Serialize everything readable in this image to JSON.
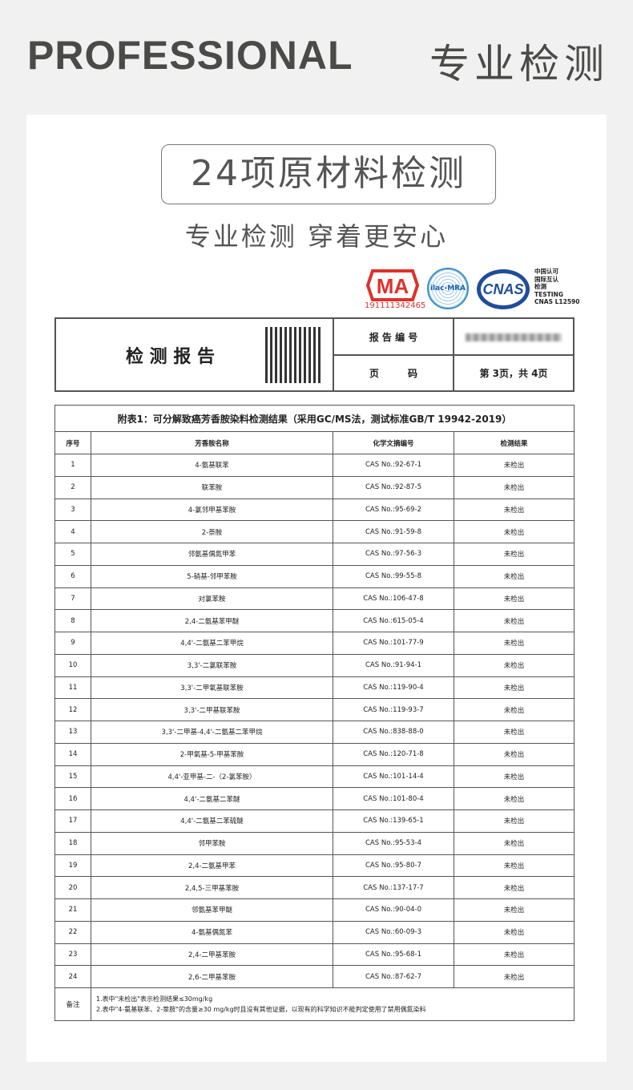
{
  "header": {
    "title_en": "PROFESSIONAL",
    "title_cn": "专业检测"
  },
  "title_box": "24项原材料检测",
  "subtitle": "专业检测 穿着更安心",
  "logos": {
    "cma_text": "MA",
    "cma_number": "191111342465",
    "ilac_text": "ilac-MRA",
    "cnas_text": "CNAS",
    "cnas_caption": [
      "中国认可",
      "国际互认",
      "检测",
      "TESTING",
      "CNAS L12590"
    ]
  },
  "report": {
    "title": "检 测 报 告",
    "report_no_label": "报 告 编 号",
    "page_label": "页　　　码",
    "page_value": "第 3页，共 4页"
  },
  "table": {
    "title": "附表1：可分解致癌芳香胺染料检测结果（采用GC/MS法，测试标准GB/T 19942-2019）",
    "headers": [
      "序号",
      "芳香胺名称",
      "化学文摘编号",
      "检测结果"
    ],
    "rows": [
      [
        "1",
        "4-氨基联苯",
        "CAS No.:92-67-1",
        "未检出"
      ],
      [
        "2",
        "联苯胺",
        "CAS No.:92-87-5",
        "未检出"
      ],
      [
        "3",
        "4-氯邻甲基苯胺",
        "CAS No.:95-69-2",
        "未检出"
      ],
      [
        "4",
        "2-萘胺",
        "CAS No.:91-59-8",
        "未检出"
      ],
      [
        "5",
        "邻氨基偶氮甲苯",
        "CAS No.:97-56-3",
        "未检出"
      ],
      [
        "6",
        "5-硝基-邻甲苯胺",
        "CAS No.:99-55-8",
        "未检出"
      ],
      [
        "7",
        "对氯苯胺",
        "CAS No.:106-47-8",
        "未检出"
      ],
      [
        "8",
        "2,4-二氨基苯甲醚",
        "CAS No.:615-05-4",
        "未检出"
      ],
      [
        "9",
        "4,4'-二氨基二苯甲烷",
        "CAS No.:101-77-9",
        "未检出"
      ],
      [
        "10",
        "3,3'-二氯联苯胺",
        "CAS No.:91-94-1",
        "未检出"
      ],
      [
        "11",
        "3,3'-二甲氧基联苯胺",
        "CAS No.:119-90-4",
        "未检出"
      ],
      [
        "12",
        "3,3'-二甲基联苯胺",
        "CAS No.:119-93-7",
        "未检出"
      ],
      [
        "13",
        "3,3'-二甲基-4,4'-二氨基二苯甲烷",
        "CAS No.:838-88-0",
        "未检出"
      ],
      [
        "14",
        "2-甲氧基-5-甲基苯胺",
        "CAS No.:120-71-8",
        "未检出"
      ],
      [
        "15",
        "4,4'-亚甲基-二-（2-氯苯胺）",
        "CAS No.:101-14-4",
        "未检出"
      ],
      [
        "16",
        "4,4'-二氨基二苯醚",
        "CAS No.:101-80-4",
        "未检出"
      ],
      [
        "17",
        "4,4'-二氨基二苯硫醚",
        "CAS No.:139-65-1",
        "未检出"
      ],
      [
        "18",
        "邻甲苯胺",
        "CAS No.:95-53-4",
        "未检出"
      ],
      [
        "19",
        "2,4-二氨基甲苯",
        "CAS No.:95-80-7",
        "未检出"
      ],
      [
        "20",
        "2,4,5-三甲基苯胺",
        "CAS No.:137-17-7",
        "未检出"
      ],
      [
        "21",
        "邻氨基苯甲醚",
        "CAS No.:90-04-0",
        "未检出"
      ],
      [
        "22",
        "4-氨基偶氮苯",
        "CAS No.:60-09-3",
        "未检出"
      ],
      [
        "23",
        "2,4-二甲基苯胺",
        "CAS No.:95-68-1",
        "未检出"
      ],
      [
        "24",
        "2,6-二甲基苯胺",
        "CAS No.:87-62-7",
        "未检出"
      ]
    ],
    "note_label": "备注",
    "notes": [
      "1.表中\"未检出\"表示检测结果≤30mg/kg",
      "2.表中\"4-氨基联苯、2-萘胺\"的含量≥30 mg/kg时且没有其他证据，以现有的科学知识不能判定使用了禁用偶氮染料"
    ]
  },
  "colors": {
    "heading": "#4a4a48",
    "cma_red": "#e0302a",
    "cnas_blue": "#1f4d9a"
  }
}
